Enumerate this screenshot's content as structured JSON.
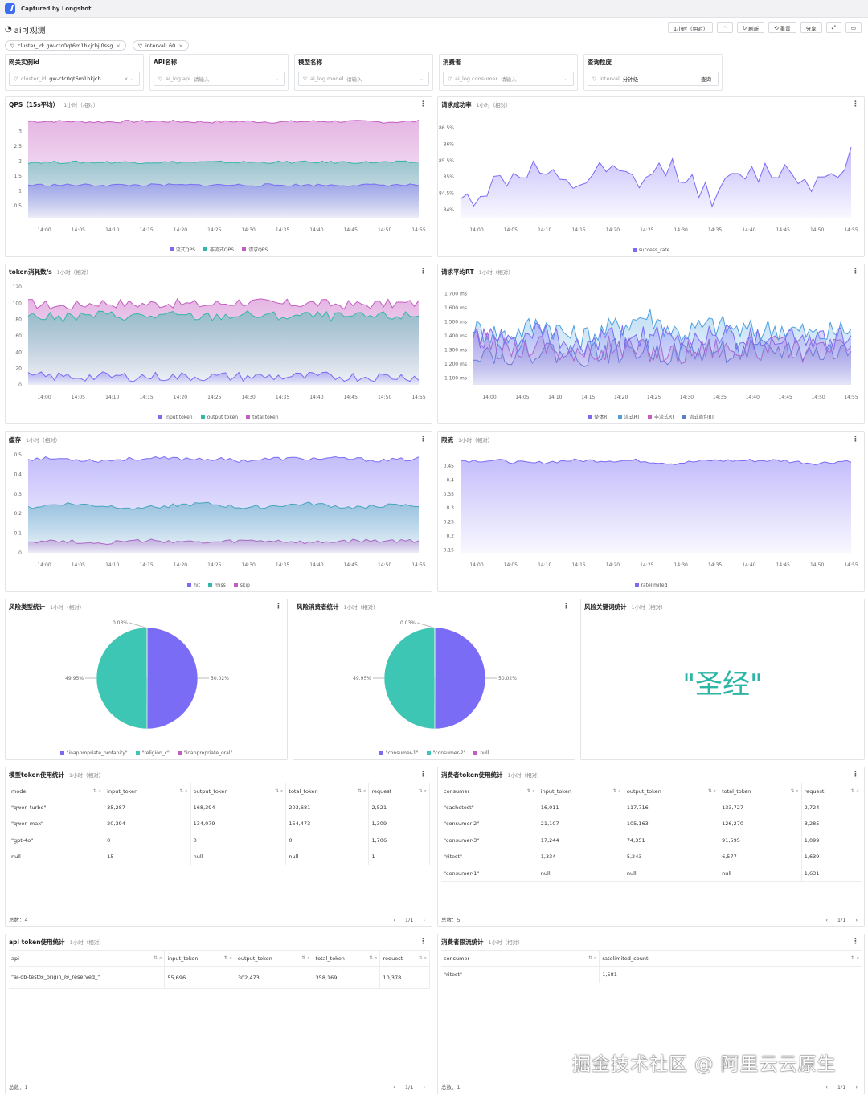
{
  "app": {
    "captured": "Captured by Longshot",
    "title": "ai可观测"
  },
  "toolbar": {
    "time": "1小时（相对）",
    "refresh": "刷新",
    "reset": "重置",
    "share": "分享"
  },
  "tags": [
    {
      "label": "cluster_id: gw-ctc0qt6m1hkjcbjl0ssg"
    },
    {
      "label": "interval: 60"
    }
  ],
  "filters": [
    {
      "label": "网关实例id",
      "key": "cluster_id",
      "value": "gw-ctc0qt6m1hkjcb..."
    },
    {
      "label": "API名称",
      "key": "ai_log.api",
      "value": "请输入"
    },
    {
      "label": "模型名称",
      "key": "ai_log.model",
      "value": "请输入"
    },
    {
      "label": "消费者",
      "key": "ai_log.consumer",
      "value": "请输入"
    },
    {
      "label": "查询粒度",
      "key": "interval",
      "value": "分钟级",
      "button": "查询"
    }
  ],
  "time_sub": "1小时（相对）",
  "panels": {
    "qps": {
      "title": "QPS（15s平均）",
      "legend": [
        "流式QPS",
        "非流式QPS",
        "请求QPS"
      ]
    },
    "success": {
      "title": "请求成功率",
      "legend": [
        "success_rate"
      ]
    },
    "token": {
      "title": "token消耗数/s",
      "legend": [
        "input token",
        "output token",
        "total token"
      ]
    },
    "rt": {
      "title": "请求平均RT",
      "legend": [
        "整体RT",
        "流式RT",
        "非流式RT",
        "流式首包RT"
      ]
    },
    "cache": {
      "title": "缓存",
      "legend": [
        "hit",
        "miss",
        "skip"
      ]
    },
    "limit": {
      "title": "限流",
      "legend": [
        "ratelimited"
      ]
    },
    "risktype": {
      "title": "风险类型统计",
      "legend": [
        "\"inappropriate_profanity\"",
        "\"religion_c\"",
        "\"inappropriate_oral\""
      ],
      "labels": [
        "0.03%",
        "49.95%",
        "50.02%"
      ]
    },
    "riskconsumer": {
      "title": "风险消费者统计",
      "legend": [
        "\"consumer-1\"",
        "\"consumer-2\"",
        "null"
      ],
      "labels": [
        "0.03%",
        "49.95%",
        "50.02%"
      ]
    },
    "riskkeyword": {
      "title": "风险关键词统计",
      "keyword": "\"圣经\""
    }
  },
  "tables": {
    "model": {
      "title": "模型token使用统计",
      "cols": [
        "model",
        "input_token",
        "output_token",
        "total_token",
        "request"
      ],
      "rows": [
        [
          "\"qwen-turbo\"",
          "35,287",
          "168,394",
          "203,681",
          "2,521"
        ],
        [
          "\"qwen-max\"",
          "20,394",
          "134,079",
          "154,473",
          "1,309"
        ],
        [
          "\"gpt-4o\"",
          "0",
          "0",
          "0",
          "1,706"
        ],
        [
          "null",
          "15",
          "null",
          "null",
          "1"
        ]
      ],
      "total": "总数：4",
      "page": "1/1"
    },
    "consumer": {
      "title": "消费者token使用统计",
      "cols": [
        "consumer",
        "input_token",
        "output_token",
        "total_token",
        "request"
      ],
      "rows": [
        [
          "\"cachetest\"",
          "16,011",
          "117,716",
          "133,727",
          "2,724"
        ],
        [
          "\"consumer-2\"",
          "21,107",
          "105,163",
          "126,270",
          "3,285"
        ],
        [
          "\"consumer-3\"",
          "17,244",
          "74,351",
          "91,595",
          "1,099"
        ],
        [
          "\"ritest\"",
          "1,334",
          "5,243",
          "6,577",
          "1,639"
        ],
        [
          "\"consumer-1\"",
          "null",
          "null",
          "null",
          "1,631"
        ]
      ],
      "total": "总数：5",
      "page": "1/1"
    },
    "api": {
      "title": "api token使用统计",
      "cols": [
        "api",
        "input_token",
        "output_token",
        "total_token",
        "request"
      ],
      "rows": [
        [
          "\"ai-ob-test@_origin_@_reserved_\"",
          "55,696",
          "302,473",
          "358,169",
          "10,378"
        ]
      ],
      "total": "总数：1",
      "page": "1/1"
    },
    "ratelimit": {
      "title": "消费者限流统计",
      "cols": [
        "consumer",
        "ratelimited_count"
      ],
      "rows": [
        [
          "\"ritest\"",
          "1,581"
        ]
      ],
      "total": "总数：1",
      "page": "1/1"
    }
  },
  "chart_data": [
    {
      "type": "area",
      "id": "qps",
      "x": [
        "14:00",
        "14:05",
        "14:10",
        "14:15",
        "14:20",
        "14:25",
        "14:30",
        "14:35",
        "14:40",
        "14:45",
        "14:50",
        "14:55"
      ],
      "ylim": [
        0,
        3
      ],
      "yticks": [
        "0.5",
        "1",
        "1.5",
        "2",
        "2.5",
        "3"
      ],
      "series": [
        {
          "name": "流式QPS",
          "color": "#7b6cf6",
          "values": [
            1.0,
            1.0,
            1.0,
            1.0,
            1.0,
            1.0,
            1.0,
            1.0,
            1.0,
            1.0,
            1.0,
            1.0
          ]
        },
        {
          "name": "非流式QPS",
          "color": "#33b8a8",
          "values": [
            1.7,
            1.7,
            1.7,
            1.7,
            1.7,
            1.7,
            1.7,
            1.7,
            1.7,
            1.7,
            1.7,
            1.7
          ]
        },
        {
          "name": "请求QPS",
          "color": "#c45cc2",
          "values": [
            2.95,
            2.95,
            2.93,
            2.95,
            2.95,
            2.93,
            2.95,
            2.93,
            2.95,
            2.95,
            2.93,
            2.95
          ]
        }
      ]
    },
    {
      "type": "area",
      "id": "success",
      "x": [
        "14:00",
        "14:05",
        "14:10",
        "14:15",
        "14:20",
        "14:25",
        "14:30",
        "14:35",
        "14:40",
        "14:45",
        "14:50",
        "14:55"
      ],
      "ylim": [
        83.8,
        86.6
      ],
      "yticks": [
        "84%",
        "84.5%",
        "85%",
        "85.5%",
        "86%",
        "86.5%"
      ],
      "series": [
        {
          "name": "success_rate",
          "color": "#7b6cf6",
          "values": [
            84.2,
            84.8,
            85.2,
            84.6,
            85.1,
            84.8,
            85.3,
            84.4,
            85.0,
            85.2,
            84.8,
            85.6
          ]
        }
      ]
    },
    {
      "type": "area",
      "id": "token",
      "x": [
        "14:00",
        "14:05",
        "14:10",
        "14:15",
        "14:20",
        "14:25",
        "14:30",
        "14:35",
        "14:40",
        "14:45",
        "14:50",
        "14:55"
      ],
      "ylim": [
        0,
        120
      ],
      "yticks": [
        "0",
        "20",
        "40",
        "60",
        "80",
        "100",
        "120"
      ],
      "series": [
        {
          "name": "input token",
          "color": "#7b6cf6",
          "values": [
            10,
            10,
            10,
            10,
            10,
            10,
            10,
            10,
            10,
            10,
            10,
            10
          ]
        },
        {
          "name": "output token",
          "color": "#33b8a8",
          "values": [
            85,
            82,
            86,
            84,
            85,
            83,
            86,
            84,
            85,
            83,
            84,
            85
          ]
        },
        {
          "name": "total token",
          "color": "#c45cc2",
          "values": [
            100,
            96,
            101,
            99,
            100,
            98,
            102,
            99,
            100,
            98,
            99,
            100
          ]
        }
      ]
    },
    {
      "type": "area",
      "id": "rt",
      "x": [
        "14:00",
        "14:05",
        "14:10",
        "14:15",
        "14:20",
        "14:25",
        "14:30",
        "14:35",
        "14:40",
        "14:45",
        "14:50",
        "14:55"
      ],
      "ylim": [
        1050,
        1750
      ],
      "yticks": [
        "1,100 ms",
        "1,200 ms",
        "1,300 ms",
        "1,400 ms",
        "1,500 ms",
        "1,600 ms",
        "1,700 ms"
      ],
      "series": [
        {
          "name": "整体RT",
          "color": "#7b6cf6",
          "values": [
            1400,
            1350,
            1420,
            1300,
            1380,
            1400,
            1350,
            1420,
            1380,
            1400,
            1360,
            1400
          ]
        },
        {
          "name": "流式RT",
          "color": "#4d9fe0",
          "values": [
            1450,
            1400,
            1500,
            1380,
            1450,
            1550,
            1420,
            1480,
            1430,
            1460,
            1400,
            1450
          ]
        },
        {
          "name": "非流式RT",
          "color": "#c45cc2",
          "values": [
            1380,
            1300,
            1350,
            1250,
            1320,
            1300,
            1280,
            1330,
            1300,
            1320,
            1290,
            1330
          ]
        },
        {
          "name": "流式首包RT",
          "color": "#5c7cd0",
          "values": [
            1300,
            1280,
            1300,
            1260,
            1290,
            1300,
            1270,
            1300,
            1280,
            1300,
            1270,
            1290
          ]
        }
      ]
    },
    {
      "type": "area",
      "id": "cache",
      "x": [
        "14:00",
        "14:05",
        "14:10",
        "14:15",
        "14:20",
        "14:25",
        "14:30",
        "14:35",
        "14:40",
        "14:45",
        "14:50",
        "14:55"
      ],
      "ylim": [
        0,
        0.5
      ],
      "yticks": [
        "0",
        "0.1",
        "0.2",
        "0.3",
        "0.4",
        "0.5"
      ],
      "series": [
        {
          "name": "hit",
          "color": "#7b6cf6",
          "values": [
            0.48,
            0.48,
            0.47,
            0.48,
            0.48,
            0.48,
            0.47,
            0.48,
            0.48,
            0.48,
            0.47,
            0.48
          ]
        },
        {
          "name": "miss",
          "color": "#33b8a8",
          "values": [
            0.23,
            0.25,
            0.24,
            0.23,
            0.24,
            0.25,
            0.23,
            0.24,
            0.25,
            0.23,
            0.24,
            0.24
          ]
        },
        {
          "name": "skip",
          "color": "#c45cc2",
          "values": [
            0.06,
            0.06,
            0.05,
            0.06,
            0.06,
            0.05,
            0.06,
            0.06,
            0.05,
            0.06,
            0.06,
            0.06
          ]
        }
      ]
    },
    {
      "type": "area",
      "id": "limit",
      "x": [
        "14:00",
        "14:05",
        "14:10",
        "14:15",
        "14:20",
        "14:25",
        "14:30",
        "14:35",
        "14:40",
        "14:45",
        "14:50",
        "14:55"
      ],
      "ylim": [
        0.12,
        0.46
      ],
      "yticks": [
        "0.15",
        "0.2",
        "0.25",
        "0.3",
        "0.35",
        "0.4",
        "0.45"
      ],
      "series": [
        {
          "name": "ratelimited",
          "color": "#7b6cf6",
          "values": [
            0.44,
            0.44,
            0.43,
            0.44,
            0.44,
            0.44,
            0.43,
            0.44,
            0.44,
            0.44,
            0.43,
            0.44
          ]
        }
      ]
    },
    {
      "type": "pie",
      "id": "risktype",
      "labels": [
        "\"inappropriate_profanity\"",
        "\"religion_c\"",
        "\"inappropriate_oral\""
      ],
      "values": [
        50.02,
        49.95,
        0.03
      ],
      "colors": [
        "#7b6cf6",
        "#3dc6b3",
        "#c45cc2"
      ]
    },
    {
      "type": "pie",
      "id": "riskconsumer",
      "labels": [
        "\"consumer-1\"",
        "\"consumer-2\"",
        "null"
      ],
      "values": [
        50.02,
        49.95,
        0.03
      ],
      "colors": [
        "#7b6cf6",
        "#3dc6b3",
        "#c45cc2"
      ]
    }
  ],
  "watermark": "掘金技术社区 @ 阿里云云原生"
}
